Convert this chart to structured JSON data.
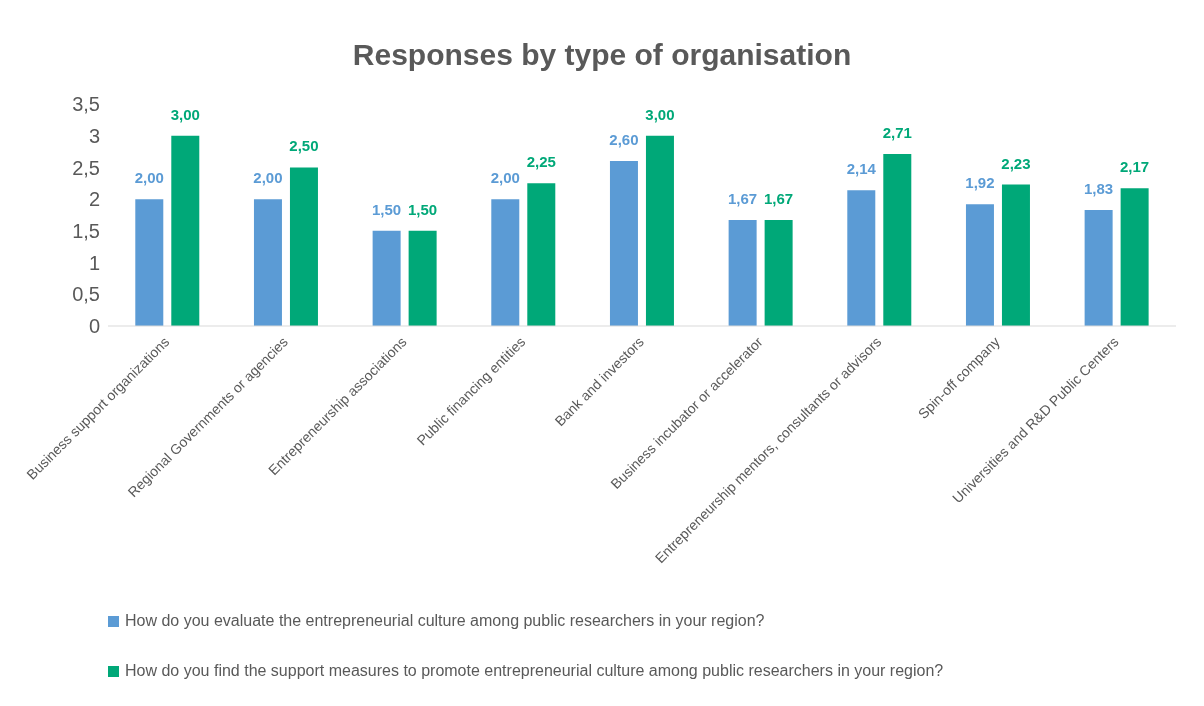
{
  "chart_data": {
    "type": "bar",
    "title": "Responses by type of organisation",
    "categories": [
      "Business support organizations",
      "Regional Governments or agencies",
      "Entrepreneurship associations",
      "Public financing entities",
      "Bank and investors",
      "Business incubator or accelerator",
      "Entrepreneurship mentors, consultants or advisors",
      "Spin-off company",
      "Universities and R&D Public Centers"
    ],
    "series": [
      {
        "name": "How do you evaluate the entrepreneurial culture among public researchers in your region?",
        "color": "#5b9bd5",
        "values": [
          2.0,
          2.0,
          1.5,
          2.0,
          2.6,
          1.67,
          2.14,
          1.92,
          1.83
        ],
        "value_labels": [
          "2,00",
          "2,00",
          "1,50",
          "2,00",
          "2,60",
          "1,67",
          "2,14",
          "1,92",
          "1,83"
        ]
      },
      {
        "name": "How do you find the support measures to promote entrepreneurial culture among public researchers in your region?",
        "color": "#00a878",
        "values": [
          3.0,
          2.5,
          1.5,
          2.25,
          3.0,
          1.67,
          2.71,
          2.23,
          2.17
        ],
        "value_labels": [
          "3,00",
          "2,50",
          "1,50",
          "2,25",
          "3,00",
          "1,67",
          "2,71",
          "2,23",
          "2,17"
        ]
      }
    ],
    "ylim": [
      0,
      3.5
    ],
    "yticks": [
      0,
      {
        "value": 0.5,
        "label": "0,5"
      },
      1,
      {
        "value": 1.5,
        "label": "1,5"
      },
      2,
      {
        "value": 2.5,
        "label": "2,5"
      },
      3,
      {
        "value": 3.5,
        "label": "3,5"
      }
    ],
    "grid": false,
    "legend": "bottom"
  }
}
